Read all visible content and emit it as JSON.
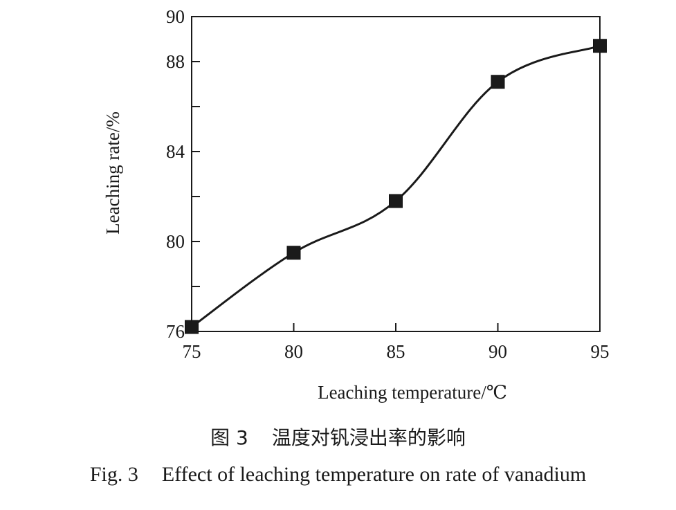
{
  "chart_data": {
    "type": "line",
    "title": "",
    "xlabel": "Leaching temperature/℃",
    "ylabel": "Leaching rate/%",
    "x": [
      75,
      80,
      85,
      90,
      95
    ],
    "series": [
      {
        "values": [
          76.2,
          79.5,
          81.8,
          87.1,
          88.7
        ]
      }
    ],
    "xlim": [
      75,
      95
    ],
    "ylim": [
      76,
      90
    ],
    "xticks": [
      75,
      80,
      85,
      90,
      95
    ],
    "yticks_labeled": [
      76,
      80,
      84,
      88,
      90
    ],
    "yticks_minor": [
      78,
      82,
      86
    ],
    "marker": "square",
    "line_color": "#1a1a1a",
    "marker_color": "#1a1a1a",
    "grid": false,
    "legend": "none"
  },
  "caption": {
    "cn_label": "图 3",
    "cn_text": "温度对钒浸出率的影响",
    "en_label": "Fig. 3",
    "en_text": "Effect of leaching temperature on rate of vanadium"
  }
}
